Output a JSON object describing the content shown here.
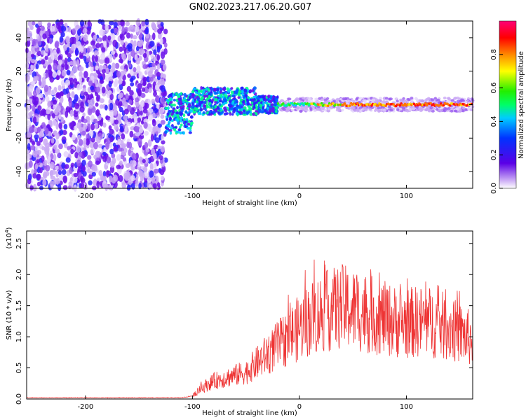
{
  "title": "GN02.2023.217.06.20.G07",
  "chart_data": [
    {
      "type": "heatmap",
      "xlabel": "Height of straight line (km)",
      "ylabel": "Frequency (Hz)",
      "xlim": [
        -255,
        162
      ],
      "ylim": [
        -50,
        50
      ],
      "xticks": [
        -200,
        -100,
        0,
        100
      ],
      "yticks": [
        -40,
        -20,
        0,
        20,
        40
      ],
      "colorbar": {
        "label": "Normalized spectral amplitude",
        "ticks": [
          "0.0",
          "0.2",
          "0.4",
          "0.6",
          "0.8"
        ],
        "range": [
          0,
          1
        ]
      }
    },
    {
      "type": "line",
      "xlabel": "Height of straight line (km)",
      "ylabel": "SNR (10 * v/v)",
      "scale_label": "(x10",
      "scale_exponent": "4",
      "scale_suffix": ")",
      "xlim": [
        -255,
        162
      ],
      "ylim": [
        0,
        2.7
      ],
      "xticks": [
        -200,
        -100,
        0,
        100
      ],
      "yticks": [
        "0.0",
        "0.5",
        "1.0",
        "1.5",
        "2.0",
        "2.5"
      ],
      "color": "#ee3333",
      "envelope": {
        "x": [
          -255,
          -110,
          -100,
          -90,
          -80,
          -70,
          -60,
          -50,
          -40,
          -30,
          -20,
          -10,
          0,
          10,
          20,
          30,
          40,
          50,
          60,
          70,
          80,
          90,
          100,
          110,
          120,
          130,
          140,
          150,
          162
        ],
        "y": [
          0.02,
          0.02,
          0.05,
          0.2,
          0.3,
          0.35,
          0.4,
          0.45,
          0.6,
          0.75,
          0.9,
          1.05,
          1.2,
          1.35,
          1.45,
          1.5,
          1.55,
          1.5,
          1.45,
          1.4,
          1.35,
          1.3,
          1.28,
          1.3,
          1.3,
          1.25,
          1.2,
          1.1,
          1.0
        ]
      }
    }
  ]
}
